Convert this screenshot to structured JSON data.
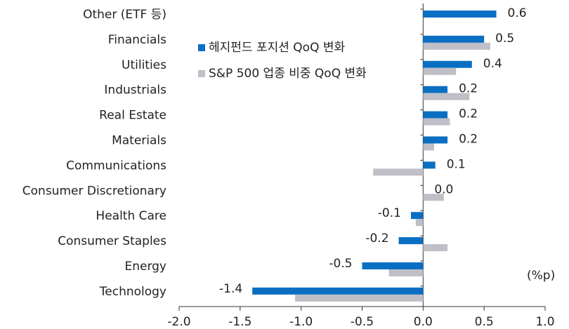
{
  "chart_data": {
    "type": "hbar",
    "categories": [
      "Other (ETF 등)",
      "Financials",
      "Utilities",
      "Industrials",
      "Real Estate",
      "Materials",
      "Communications",
      "Consumer Discretionary",
      "Health Care",
      "Consumer Staples",
      "Energy",
      "Technology"
    ],
    "series": [
      {
        "name": "헤지펀드 포지션 QoQ 변화",
        "color": "#0a6fc2",
        "values": [
          0.6,
          0.5,
          0.4,
          0.2,
          0.2,
          0.2,
          0.1,
          0.0,
          -0.1,
          -0.2,
          -0.5,
          -1.4
        ],
        "value_labels": [
          "0.6",
          "0.5",
          "0.4",
          "0.2",
          "0.2",
          "0.2",
          "0.1",
          "0.0",
          "-0.1",
          "-0.2",
          "-0.5",
          "-1.4"
        ]
      },
      {
        "name": "S&P 500 업종 비중 QoQ 변화",
        "color": "#bfbfc8",
        "values": [
          0,
          0.55,
          0.27,
          0.38,
          0.22,
          0.09,
          -0.41,
          0.17,
          -0.06,
          0.2,
          -0.28,
          -1.05
        ]
      }
    ],
    "xlim": [
      -2.0,
      1.0
    ],
    "xticks": [
      {
        "value": -2.0,
        "label": "-2.0"
      },
      -1.5,
      {
        "value": -1.0,
        "label": "-1.0"
      },
      -0.5,
      {
        "value": 0.0,
        "label": "0.0"
      },
      0.5,
      {
        "value": 1.0,
        "label": "1.0"
      }
    ],
    "annotation": "(%p)"
  }
}
